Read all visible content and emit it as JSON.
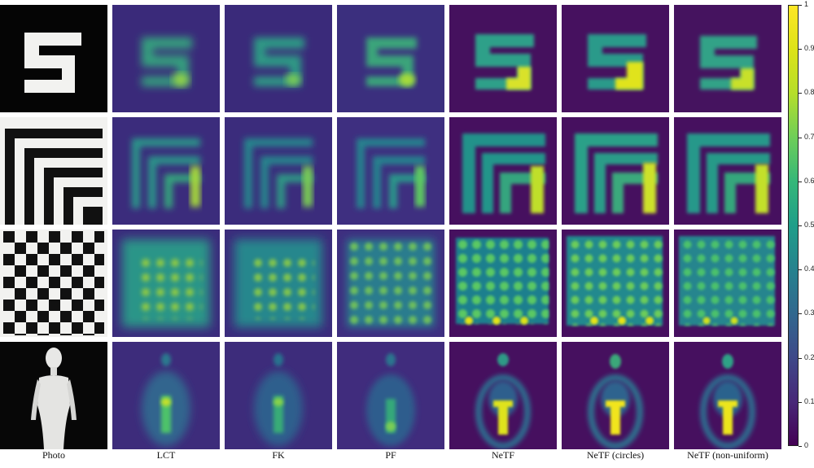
{
  "figure": {
    "columns": [
      {
        "key": "photo",
        "label": "Photo"
      },
      {
        "key": "lct",
        "label": "LCT"
      },
      {
        "key": "fk",
        "label": "FK"
      },
      {
        "key": "pf",
        "label": "PF"
      },
      {
        "key": "netf",
        "label": "NeTF"
      },
      {
        "key": "netf_circles",
        "label": "NeTF (circles)"
      },
      {
        "key": "netf_nonuniform",
        "label": "NeTF (non-uniform)"
      }
    ],
    "rows": [
      {
        "key": "letter-s"
      },
      {
        "key": "stripes"
      },
      {
        "key": "checkerboard"
      },
      {
        "key": "mannequin"
      }
    ],
    "colorbar": {
      "colormap": "viridis",
      "range": [
        0,
        1
      ],
      "ticks": [
        "0",
        "0.1",
        "0.2",
        "0.3",
        "0.4",
        "0.5",
        "0.6",
        "0.7",
        "0.8",
        "0.9",
        "1"
      ]
    },
    "colors": {
      "viridis_low": "#440154",
      "viridis_mid": "#21918c",
      "viridis_high": "#fde725",
      "background": "#ffffff"
    }
  }
}
